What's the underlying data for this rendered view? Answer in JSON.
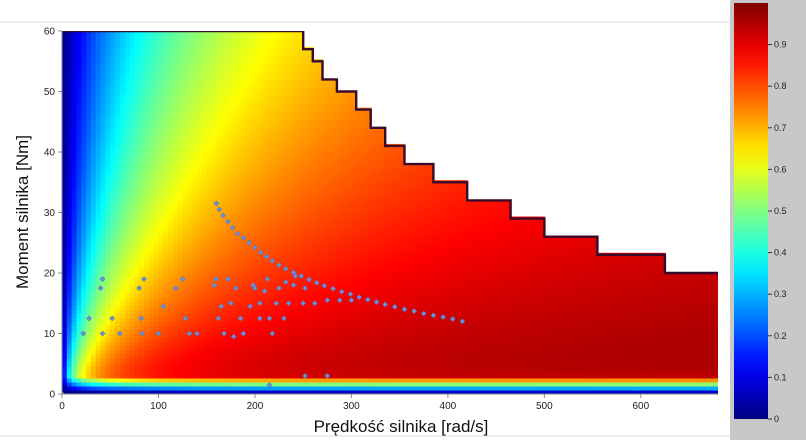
{
  "chart_data": {
    "type": "heatmap",
    "title": "",
    "xlabel": "Prędkość silnika [rad/s]",
    "ylabel": "Moment silnika [Nm]",
    "xlim": [
      0,
      680
    ],
    "ylim": [
      0,
      60
    ],
    "x_ticks": [
      0,
      100,
      200,
      300,
      400,
      500,
      600
    ],
    "y_ticks": [
      0,
      10,
      20,
      30,
      40,
      50,
      60
    ],
    "colormap": "jet",
    "colorbar": {
      "range": [
        0,
        1
      ],
      "ticks": [
        0,
        0.1,
        0.2,
        0.3,
        0.4,
        0.5,
        0.6,
        0.7,
        0.8,
        0.9
      ],
      "tick_labels": [
        "0",
        "0.1",
        "0.2",
        "0.3",
        "0.4",
        "0.5",
        "0.6",
        "0.7",
        "0.8",
        "0.9"
      ]
    },
    "max_torque_envelope": [
      {
        "speed": 0,
        "torque": 60
      },
      {
        "speed": 240,
        "torque": 60
      },
      {
        "speed": 250,
        "torque": 57
      },
      {
        "speed": 260,
        "torque": 55
      },
      {
        "speed": 270,
        "torque": 52
      },
      {
        "speed": 285,
        "torque": 50
      },
      {
        "speed": 305,
        "torque": 47
      },
      {
        "speed": 320,
        "torque": 44
      },
      {
        "speed": 335,
        "torque": 41
      },
      {
        "speed": 355,
        "torque": 38
      },
      {
        "speed": 385,
        "torque": 35
      },
      {
        "speed": 420,
        "torque": 32
      },
      {
        "speed": 465,
        "torque": 29
      },
      {
        "speed": 500,
        "torque": 26
      },
      {
        "speed": 555,
        "torque": 23
      },
      {
        "speed": 625,
        "torque": 20
      },
      {
        "speed": 680,
        "torque": 19.5
      }
    ],
    "scatter_series": [
      {
        "color": "#6a8fd8",
        "points": [
          [
            160,
            31.5
          ],
          [
            163,
            30.5
          ],
          [
            167,
            29.5
          ],
          [
            172,
            28.5
          ],
          [
            177,
            27.5
          ],
          [
            182,
            26.5
          ],
          [
            188,
            25.8
          ],
          [
            194,
            25.0
          ],
          [
            200,
            24.2
          ],
          [
            206,
            23.4
          ],
          [
            212,
            22.7
          ],
          [
            218,
            22.0
          ],
          [
            225,
            21.3
          ],
          [
            232,
            20.7
          ],
          [
            240,
            20.1
          ],
          [
            248,
            19.5
          ],
          [
            256,
            18.9
          ],
          [
            264,
            18.4
          ],
          [
            272,
            17.9
          ],
          [
            281,
            17.4
          ],
          [
            290,
            16.9
          ],
          [
            299,
            16.5
          ],
          [
            308,
            16.0
          ],
          [
            317,
            15.6
          ],
          [
            326,
            15.2
          ],
          [
            335,
            14.8
          ],
          [
            345,
            14.4
          ],
          [
            355,
            14.0
          ],
          [
            365,
            13.7
          ],
          [
            375,
            13.3
          ],
          [
            385,
            13.0
          ],
          [
            395,
            12.7
          ],
          [
            405,
            12.4
          ],
          [
            415,
            12.0
          ],
          [
            22,
            10
          ],
          [
            28,
            12.5
          ],
          [
            40,
            17.5
          ],
          [
            42,
            19
          ],
          [
            42,
            10
          ],
          [
            52,
            12.5
          ],
          [
            60,
            10
          ],
          [
            80,
            17.5
          ],
          [
            82,
            12.5
          ],
          [
            85,
            19
          ],
          [
            83,
            10
          ],
          [
            100,
            10
          ],
          [
            105,
            14.5
          ],
          [
            118,
            17.5
          ],
          [
            125,
            19
          ],
          [
            128,
            12.5
          ],
          [
            132,
            10
          ],
          [
            140,
            10
          ],
          [
            158,
            18
          ],
          [
            160,
            19
          ],
          [
            162,
            12.5
          ],
          [
            165,
            14.5
          ],
          [
            168,
            10
          ],
          [
            172,
            19
          ],
          [
            175,
            15
          ],
          [
            178,
            9.5
          ],
          [
            180,
            17.5
          ],
          [
            185,
            12.5
          ],
          [
            188,
            10
          ],
          [
            195,
            14.5
          ],
          [
            198,
            18
          ],
          [
            200,
            17.5
          ],
          [
            205,
            12.5
          ],
          [
            205,
            15
          ],
          [
            210,
            17
          ],
          [
            213,
            19
          ],
          [
            215,
            12.5
          ],
          [
            218,
            10
          ],
          [
            222,
            15
          ],
          [
            225,
            17.5
          ],
          [
            230,
            12.5
          ],
          [
            232,
            18.5
          ],
          [
            235,
            15
          ],
          [
            240,
            18
          ],
          [
            242,
            19.5
          ],
          [
            250,
            15
          ],
          [
            252,
            17.5
          ],
          [
            262,
            15
          ],
          [
            275,
            15.5
          ],
          [
            288,
            15.5
          ],
          [
            300,
            15.5
          ],
          [
            215,
            1.5
          ],
          [
            252,
            3
          ],
          [
            275,
            3
          ],
          [
            0,
            0
          ]
        ]
      }
    ]
  }
}
